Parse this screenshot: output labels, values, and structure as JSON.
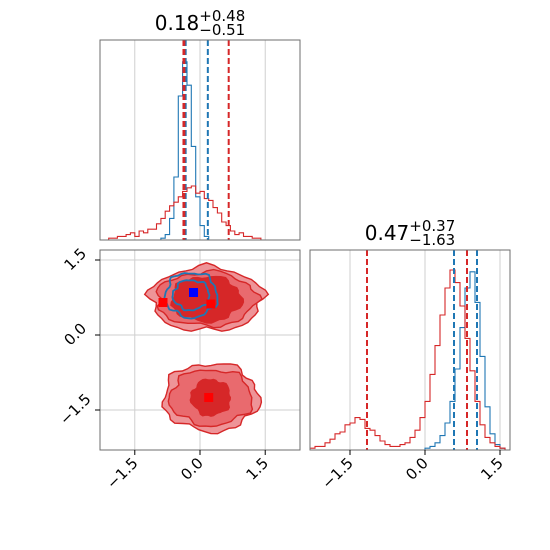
{
  "chart_data": [
    {
      "type": "histogram",
      "panel": "top-left marginal",
      "title": {
        "value": "0.18",
        "upper": "+0.48",
        "lower": "−0.51"
      },
      "x_range": [
        -2.3,
        2.3
      ],
      "bin_edges_start": -2.3,
      "bin_width": 0.1,
      "series": [
        {
          "color": "#1f77b4",
          "values": [
            0,
            0,
            0,
            0,
            0,
            0,
            0,
            0,
            0,
            0,
            0,
            0,
            0,
            0,
            0.01,
            0.03,
            0.12,
            0.35,
            0.8,
            0.99,
            0.86,
            0.52,
            0.24,
            0.08,
            0.02,
            0,
            0,
            0,
            0,
            0,
            0,
            0,
            0,
            0,
            0,
            0,
            0,
            0,
            0,
            0,
            0,
            0,
            0,
            0,
            0,
            0
          ]
        },
        {
          "color": "#d62728",
          "values": [
            0,
            0,
            0.01,
            0.01,
            0.02,
            0.02,
            0.03,
            0.04,
            0.02,
            0.05,
            0.04,
            0.06,
            0.06,
            0.09,
            0.12,
            0.16,
            0.19,
            0.21,
            0.24,
            0.27,
            0.29,
            0.3,
            0.26,
            0.27,
            0.23,
            0.22,
            0.18,
            0.15,
            0.1,
            0.08,
            0.05,
            0.03,
            0.04,
            0.02,
            0.02,
            0.01,
            0.01,
            0,
            0,
            0,
            0,
            0,
            0,
            0,
            0,
            0
          ]
        }
      ],
      "quantile_lines": [
        {
          "x": -0.33,
          "color": "#1f77b4"
        },
        {
          "x": 0.18,
          "color": "#1f77b4"
        },
        {
          "x": -0.38,
          "color": "#d62728"
        },
        {
          "x": -0.36,
          "color": "#d62728"
        },
        {
          "x": 0.66,
          "color": "#d62728"
        }
      ]
    },
    {
      "type": "contour",
      "panel": "bottom-left joint",
      "x_range": [
        -2.3,
        2.3
      ],
      "y_range": [
        -2.3,
        1.7
      ],
      "x_ticks": [
        "−1.5",
        "0.0",
        "1.5"
      ],
      "y_ticks": [
        "−1.5",
        "0.0",
        "1.5"
      ],
      "x_tick_values": [
        -1.5,
        0.0,
        1.5
      ],
      "y_tick_values": [
        -1.5,
        0.0,
        1.5
      ],
      "red_components": [
        {
          "center": [
            0.15,
            0.72
          ],
          "radii_levels": [
            [
              1.3,
              0.64
            ],
            [
              1.15,
              0.54
            ],
            [
              0.8,
              0.45
            ]
          ]
        },
        {
          "center": [
            0.25,
            -1.25
          ],
          "radii_levels": [
            [
              1.1,
              0.68
            ],
            [
              0.95,
              0.56
            ],
            [
              0.45,
              0.36
            ]
          ]
        }
      ],
      "blue_component": {
        "center": [
          -0.2,
          0.8
        ],
        "radii_levels": [
          [
            0.6,
            0.45
          ],
          [
            0.42,
            0.3
          ]
        ]
      },
      "markers": [
        {
          "x": -0.85,
          "y": 0.65,
          "color": "#ff0000"
        },
        {
          "x": 0.25,
          "y": 0.62,
          "color": "#ff0000"
        },
        {
          "x": 0.2,
          "y": -1.25,
          "color": "#ff0000"
        },
        {
          "x": -0.15,
          "y": 0.85,
          "color": "#0000ff"
        }
      ]
    },
    {
      "type": "histogram",
      "panel": "bottom-right marginal",
      "title": {
        "value": "0.47",
        "upper": "+0.37",
        "lower": "−1.63"
      },
      "x_range": [
        -2.3,
        1.7
      ],
      "x_ticks": [
        "−1.5",
        "0.0",
        "1.5"
      ],
      "x_tick_values": [
        -1.5,
        0.0,
        1.5
      ],
      "bin_edges_start": -2.3,
      "bin_width": 0.1,
      "series": [
        {
          "color": "#1f77b4",
          "values": [
            0,
            0,
            0,
            0,
            0,
            0,
            0,
            0,
            0,
            0,
            0,
            0,
            0,
            0,
            0,
            0,
            0,
            0,
            0,
            0,
            0,
            0,
            0,
            0.01,
            0.02,
            0.04,
            0.08,
            0.15,
            0.27,
            0.45,
            0.68,
            0.9,
            0.99,
            0.82,
            0.52,
            0.24,
            0.09,
            0.03,
            0.01,
            0
          ]
        },
        {
          "color": "#d62728",
          "values": [
            0.01,
            0.02,
            0.02,
            0.04,
            0.06,
            0.09,
            0.1,
            0.14,
            0.15,
            0.18,
            0.17,
            0.12,
            0.11,
            0.08,
            0.05,
            0.03,
            0.02,
            0.02,
            0.03,
            0.04,
            0.07,
            0.11,
            0.18,
            0.27,
            0.42,
            0.58,
            0.75,
            0.9,
            1.0,
            0.93,
            0.8,
            0.62,
            0.44,
            0.27,
            0.14,
            0.07,
            0.04,
            0.02,
            0.01,
            0
          ]
        }
      ],
      "quantile_lines": [
        {
          "x": 0.58,
          "color": "#1f77b4"
        },
        {
          "x": 1.04,
          "color": "#1f77b4"
        },
        {
          "x": -1.16,
          "color": "#d62728"
        },
        {
          "x": 0.84,
          "color": "#d62728"
        }
      ]
    }
  ]
}
